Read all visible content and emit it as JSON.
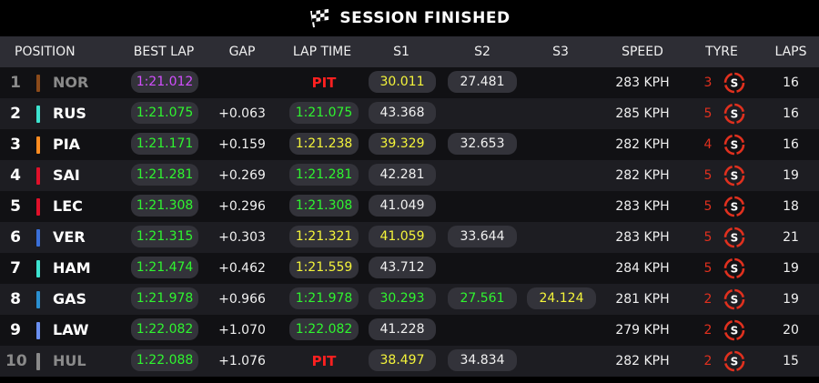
{
  "banner": {
    "title": "SESSION FINISHED",
    "icon": "checkered-flag-icon"
  },
  "columns": {
    "position": "POSITION",
    "best_lap": "BEST LAP",
    "gap": "GAP",
    "lap_time": "LAP TIME",
    "s1": "S1",
    "s2": "S2",
    "s3": "S3",
    "speed": "SPEED",
    "tyre": "TYRE",
    "laps": "LAPS"
  },
  "colors": {
    "purple": "#d24fff",
    "green": "#2ff52f",
    "yellow": "#f4f43a",
    "white": "#f0f0f0",
    "pit": "#ff2020",
    "tyre_soft": "#e0301e"
  },
  "rows": [
    {
      "pos": "1",
      "team_color": "#8b4a1a",
      "driver": "NOR",
      "retired": true,
      "best_lap": {
        "v": "1:21.012",
        "c": "purple"
      },
      "gap": "",
      "lap_time": {
        "v": "PIT",
        "c": "pit"
      },
      "s1": {
        "v": "30.011",
        "c": "yellow"
      },
      "s2": {
        "v": "27.481",
        "c": "white"
      },
      "s3": {
        "v": "",
        "c": "white"
      },
      "speed": "283 KPH",
      "tyre_age": "3",
      "tyre_icon": "soft-tyre-icon",
      "laps": "16"
    },
    {
      "pos": "2",
      "team_color": "#3de3cf",
      "driver": "RUS",
      "retired": false,
      "best_lap": {
        "v": "1:21.075",
        "c": "green"
      },
      "gap": "+0.063",
      "lap_time": {
        "v": "1:21.075",
        "c": "green"
      },
      "s1": {
        "v": "43.368",
        "c": "white"
      },
      "s2": {
        "v": "",
        "c": "white"
      },
      "s3": {
        "v": "",
        "c": "white"
      },
      "speed": "285 KPH",
      "tyre_age": "5",
      "tyre_icon": "soft-tyre-icon",
      "laps": "16"
    },
    {
      "pos": "3",
      "team_color": "#ff8c20",
      "driver": "PIA",
      "retired": false,
      "best_lap": {
        "v": "1:21.171",
        "c": "green"
      },
      "gap": "+0.159",
      "lap_time": {
        "v": "1:21.238",
        "c": "yellow"
      },
      "s1": {
        "v": "39.329",
        "c": "yellow"
      },
      "s2": {
        "v": "32.653",
        "c": "white"
      },
      "s3": {
        "v": "",
        "c": "white"
      },
      "speed": "282 KPH",
      "tyre_age": "4",
      "tyre_icon": "soft-tyre-icon",
      "laps": "16"
    },
    {
      "pos": "4",
      "team_color": "#e0102a",
      "driver": "SAI",
      "retired": false,
      "best_lap": {
        "v": "1:21.281",
        "c": "green"
      },
      "gap": "+0.269",
      "lap_time": {
        "v": "1:21.281",
        "c": "green"
      },
      "s1": {
        "v": "42.281",
        "c": "white"
      },
      "s2": {
        "v": "",
        "c": "white"
      },
      "s3": {
        "v": "",
        "c": "white"
      },
      "speed": "282 KPH",
      "tyre_age": "5",
      "tyre_icon": "soft-tyre-icon",
      "laps": "19"
    },
    {
      "pos": "5",
      "team_color": "#e0102a",
      "driver": "LEC",
      "retired": false,
      "best_lap": {
        "v": "1:21.308",
        "c": "green"
      },
      "gap": "+0.296",
      "lap_time": {
        "v": "1:21.308",
        "c": "green"
      },
      "s1": {
        "v": "41.049",
        "c": "white"
      },
      "s2": {
        "v": "",
        "c": "white"
      },
      "s3": {
        "v": "",
        "c": "white"
      },
      "speed": "283 KPH",
      "tyre_age": "5",
      "tyre_icon": "soft-tyre-icon",
      "laps": "18"
    },
    {
      "pos": "6",
      "team_color": "#3a6fd8",
      "driver": "VER",
      "retired": false,
      "best_lap": {
        "v": "1:21.315",
        "c": "green"
      },
      "gap": "+0.303",
      "lap_time": {
        "v": "1:21.321",
        "c": "yellow"
      },
      "s1": {
        "v": "41.059",
        "c": "yellow"
      },
      "s2": {
        "v": "33.644",
        "c": "white"
      },
      "s3": {
        "v": "",
        "c": "white"
      },
      "speed": "283 KPH",
      "tyre_age": "5",
      "tyre_icon": "soft-tyre-icon",
      "laps": "21"
    },
    {
      "pos": "7",
      "team_color": "#3de3cf",
      "driver": "HAM",
      "retired": false,
      "best_lap": {
        "v": "1:21.474",
        "c": "green"
      },
      "gap": "+0.462",
      "lap_time": {
        "v": "1:21.559",
        "c": "yellow"
      },
      "s1": {
        "v": "43.712",
        "c": "white"
      },
      "s2": {
        "v": "",
        "c": "white"
      },
      "s3": {
        "v": "",
        "c": "white"
      },
      "speed": "284 KPH",
      "tyre_age": "5",
      "tyre_icon": "soft-tyre-icon",
      "laps": "19"
    },
    {
      "pos": "8",
      "team_color": "#2a8fd0",
      "driver": "GAS",
      "retired": false,
      "best_lap": {
        "v": "1:21.978",
        "c": "green"
      },
      "gap": "+0.966",
      "lap_time": {
        "v": "1:21.978",
        "c": "green"
      },
      "s1": {
        "v": "30.293",
        "c": "green"
      },
      "s2": {
        "v": "27.561",
        "c": "green"
      },
      "s3": {
        "v": "24.124",
        "c": "yellow"
      },
      "speed": "281 KPH",
      "tyre_age": "2",
      "tyre_icon": "soft-tyre-icon",
      "laps": "19"
    },
    {
      "pos": "9",
      "team_color": "#6a8ff0",
      "driver": "LAW",
      "retired": false,
      "best_lap": {
        "v": "1:22.082",
        "c": "green"
      },
      "gap": "+1.070",
      "lap_time": {
        "v": "1:22.082",
        "c": "green"
      },
      "s1": {
        "v": "41.228",
        "c": "white"
      },
      "s2": {
        "v": "",
        "c": "white"
      },
      "s3": {
        "v": "",
        "c": "white"
      },
      "speed": "279 KPH",
      "tyre_age": "2",
      "tyre_icon": "soft-tyre-icon",
      "laps": "20"
    },
    {
      "pos": "10",
      "team_color": "#8a8a8a",
      "driver": "HUL",
      "retired": true,
      "best_lap": {
        "v": "1:22.088",
        "c": "green"
      },
      "gap": "+1.076",
      "lap_time": {
        "v": "PIT",
        "c": "pit"
      },
      "s1": {
        "v": "38.497",
        "c": "yellow"
      },
      "s2": {
        "v": "34.834",
        "c": "white"
      },
      "s3": {
        "v": "",
        "c": "white"
      },
      "speed": "282 KPH",
      "tyre_age": "2",
      "tyre_icon": "soft-tyre-icon",
      "laps": "15"
    }
  ]
}
